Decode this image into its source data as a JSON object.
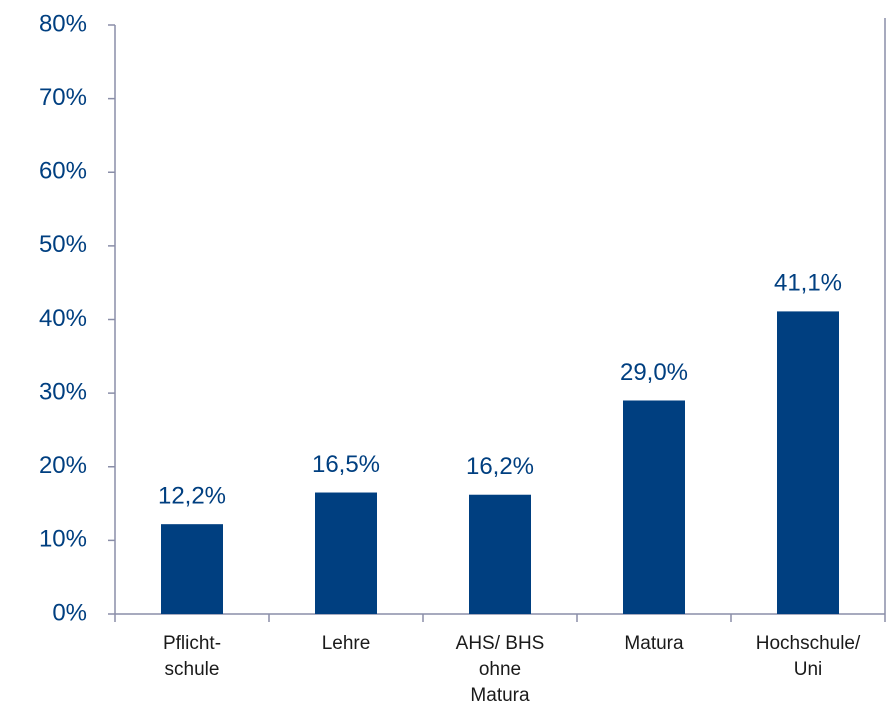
{
  "chart_data": {
    "type": "bar",
    "categories": [
      "Pflicht-\nschule",
      "Lehre",
      "AHS/ BHS\nohne\nMatura",
      "Matura",
      "Hochschule/\nUni"
    ],
    "values": [
      12.2,
      16.5,
      16.2,
      29.0,
      41.1
    ],
    "value_labels": [
      "12,2%",
      "16,5%",
      "16,2%",
      "29,0%",
      "41,1%"
    ],
    "color": "#003f80",
    "ylim": [
      0,
      80
    ],
    "yticks": [
      {
        "value": 0,
        "label": "0%"
      },
      {
        "value": 10,
        "label": "10%"
      },
      {
        "value": 20,
        "label": "20%"
      },
      {
        "value": 30,
        "label": "30%"
      },
      {
        "value": 40,
        "label": "40%"
      },
      {
        "value": 50,
        "label": "50%"
      },
      {
        "value": 60,
        "label": "60%"
      },
      {
        "value": 70,
        "label": "70%"
      },
      {
        "value": 80,
        "label": "80%"
      }
    ],
    "grid": false
  }
}
